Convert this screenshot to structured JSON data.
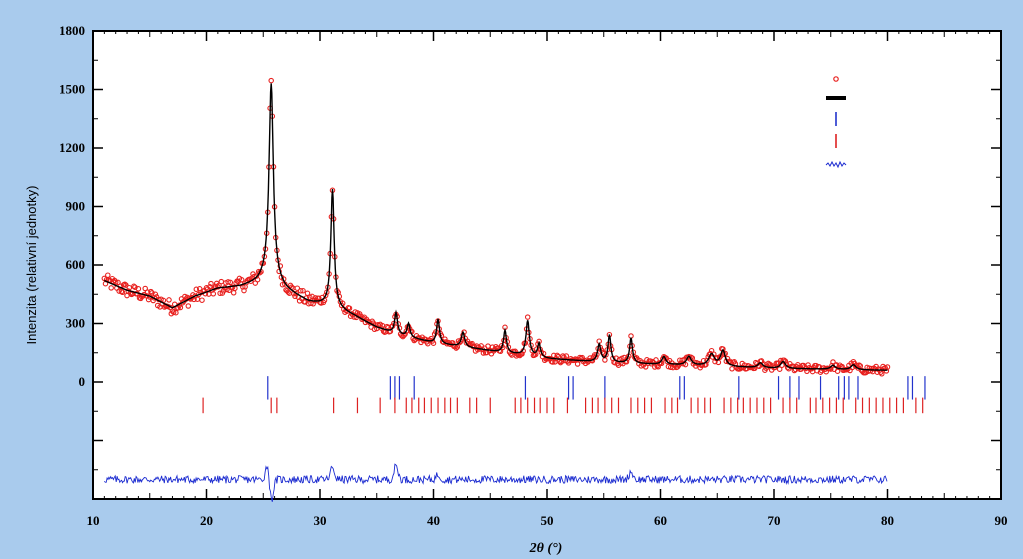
{
  "chart_data": {
    "type": "line",
    "title": "",
    "xlabel": "2θ (°)",
    "ylabel": "Intenzita (relativní jednotky)",
    "xlim": [
      10,
      90
    ],
    "ylim": [
      -600,
      1800
    ],
    "x_ticks": [
      10,
      20,
      30,
      40,
      50,
      60,
      70,
      80,
      90
    ],
    "y_ticks": [
      0,
      300,
      600,
      900,
      1200,
      1500,
      1800
    ],
    "legend_position": "top-right",
    "legend_labels": [
      "",
      "",
      "",
      "",
      ""
    ],
    "colors": {
      "observed": "#e8201e",
      "calculated": "#000000",
      "phase1": "#2233cc",
      "phase2": "#dd2222",
      "difference": "#1a2ad0",
      "background": "#ffffff",
      "frame": "#a9cbed"
    },
    "background_curve": [
      [
        11,
        520
      ],
      [
        13,
        470
      ],
      [
        15,
        440
      ],
      [
        17,
        380
      ],
      [
        19,
        440
      ],
      [
        21,
        480
      ],
      [
        23,
        490
      ],
      [
        24.5,
        510
      ],
      [
        25.5,
        540
      ],
      [
        27,
        470
      ],
      [
        29,
        410
      ],
      [
        31,
        390
      ],
      [
        33,
        340
      ],
      [
        35,
        280
      ],
      [
        37,
        240
      ],
      [
        40,
        200
      ],
      [
        45,
        160
      ],
      [
        50,
        120
      ],
      [
        55,
        100
      ],
      [
        60,
        90
      ],
      [
        65,
        80
      ],
      [
        70,
        70
      ],
      [
        75,
        65
      ],
      [
        80,
        60
      ]
    ],
    "peaks": [
      {
        "pos": 25.7,
        "height": 1000,
        "width": 0.45
      },
      {
        "pos": 31.1,
        "height": 600,
        "width": 0.35
      },
      {
        "pos": 36.7,
        "height": 110,
        "width": 0.3
      },
      {
        "pos": 37.8,
        "height": 70,
        "width": 0.3
      },
      {
        "pos": 40.4,
        "height": 125,
        "width": 0.3
      },
      {
        "pos": 42.6,
        "height": 75,
        "width": 0.35
      },
      {
        "pos": 46.3,
        "height": 115,
        "width": 0.3
      },
      {
        "pos": 48.3,
        "height": 180,
        "width": 0.35
      },
      {
        "pos": 49.3,
        "height": 70,
        "width": 0.3
      },
      {
        "pos": 54.6,
        "height": 90,
        "width": 0.35
      },
      {
        "pos": 55.5,
        "height": 140,
        "width": 0.3
      },
      {
        "pos": 57.4,
        "height": 130,
        "width": 0.3
      },
      {
        "pos": 60.3,
        "height": 40,
        "width": 0.4
      },
      {
        "pos": 62.5,
        "height": 45,
        "width": 0.5
      },
      {
        "pos": 64.5,
        "height": 60,
        "width": 0.6
      },
      {
        "pos": 65.5,
        "height": 80,
        "width": 0.5
      },
      {
        "pos": 68.8,
        "height": 25,
        "width": 0.5
      },
      {
        "pos": 70.8,
        "height": 35,
        "width": 0.5
      },
      {
        "pos": 75.2,
        "height": 20,
        "width": 0.5
      },
      {
        "pos": 77.0,
        "height": 25,
        "width": 0.5
      }
    ],
    "phase1_ticks": [
      25.4,
      36.2,
      36.6,
      37.0,
      38.3,
      48.1,
      51.9,
      52.3,
      55.1,
      61.7,
      62.1,
      66.9,
      70.4,
      71.4,
      72.2,
      74.1,
      75.7,
      76.2,
      76.6,
      77.4,
      81.8,
      82.2,
      83.3
    ],
    "phase2_ticks": [
      19.7,
      25.7,
      26.2,
      31.2,
      33.3,
      35.3,
      36.6,
      37.6,
      38.1,
      38.7,
      39.2,
      39.8,
      40.4,
      41.0,
      41.5,
      42.1,
      43.2,
      43.8,
      45.0,
      47.2,
      47.7,
      48.3,
      48.9,
      49.4,
      50.0,
      50.6,
      51.8,
      53.4,
      54.0,
      54.5,
      55.1,
      55.7,
      56.3,
      57.4,
      58.0,
      58.6,
      59.2,
      60.4,
      61.0,
      61.5,
      62.7,
      63.3,
      63.9,
      64.4,
      65.6,
      66.2,
      66.8,
      67.3,
      67.9,
      68.5,
      69.1,
      69.7,
      70.8,
      71.4,
      72.0,
      73.2,
      73.7,
      74.3,
      74.9,
      75.5,
      76.1,
      77.2,
      77.8,
      78.4,
      79.0,
      79.6,
      80.2,
      80.8,
      81.4,
      82.5,
      83.1
    ],
    "difference_offset": -500,
    "difference_features": [
      {
        "pos": 25.7,
        "amp": -120,
        "type": "dip"
      },
      {
        "pos": 25.4,
        "amp": 90,
        "type": "spike"
      },
      {
        "pos": 31.1,
        "amp": 60,
        "type": "dip"
      },
      {
        "pos": 36.7,
        "amp": 70,
        "type": "spike"
      },
      {
        "pos": 57.4,
        "amp": 40,
        "type": "spike"
      },
      {
        "pos": 40.4,
        "amp": 25,
        "type": "spike"
      }
    ]
  }
}
